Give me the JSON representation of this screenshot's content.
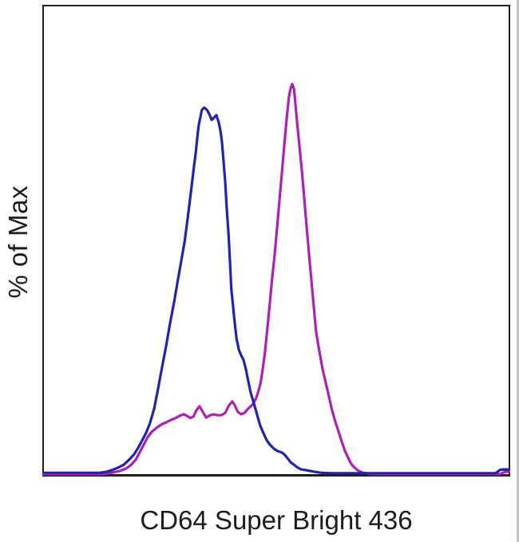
{
  "figure": {
    "background": "#ffffff",
    "border_color": "#1f1f1f",
    "text_color": "#1c1c1c"
  },
  "chart_data": {
    "type": "line",
    "subtype": "flow-cytometry-histogram-overlay",
    "title": "",
    "xlabel": "CD64 Super Bright 436",
    "ylabel": "% of Max",
    "x_axis_ticks": [],
    "y_axis_ticks": [],
    "xlim": [
      0,
      100
    ],
    "ylim": [
      0,
      100
    ],
    "x_units": "percent of axis width (no tick labels shown)",
    "y_units": "percent of plot height (no tick labels shown)",
    "grid": false,
    "legend": false,
    "series": [
      {
        "name": "magenta-curve",
        "color": "#aa22b2",
        "stroke_width": 3.2,
        "peak": {
          "x": 53.4,
          "y": 83.2
        },
        "points": [
          [
            0,
            0.5
          ],
          [
            8,
            0.5
          ],
          [
            13.1,
            0.5
          ],
          [
            14.8,
            0.8
          ],
          [
            16.6,
            1.2
          ],
          [
            17.9,
            1.7
          ],
          [
            18.9,
            2.4
          ],
          [
            20,
            3.6
          ],
          [
            20.8,
            5.1
          ],
          [
            21.7,
            6.8
          ],
          [
            22.5,
            8.3
          ],
          [
            23.4,
            9.5
          ],
          [
            24.4,
            10.3
          ],
          [
            25.4,
            11
          ],
          [
            26.5,
            11.5
          ],
          [
            27.5,
            12
          ],
          [
            28.5,
            12.4
          ],
          [
            29.4,
            12.9
          ],
          [
            30.2,
            13.2
          ],
          [
            30.9,
            12.9
          ],
          [
            31.6,
            12.4
          ],
          [
            32.3,
            12.7
          ],
          [
            32.9,
            14
          ],
          [
            33.6,
            14.9
          ],
          [
            34.3,
            13.7
          ],
          [
            35,
            12.5
          ],
          [
            35.7,
            12.9
          ],
          [
            36.5,
            13.2
          ],
          [
            37.4,
            13
          ],
          [
            38.2,
            13
          ],
          [
            39.1,
            13.5
          ],
          [
            39.9,
            15.1
          ],
          [
            40.6,
            15.9
          ],
          [
            41.1,
            15.2
          ],
          [
            41.8,
            13.7
          ],
          [
            42.5,
            13.2
          ],
          [
            43.2,
            13.5
          ],
          [
            44,
            14.4
          ],
          [
            44.9,
            15.2
          ],
          [
            45.6,
            16.4
          ],
          [
            46.1,
            17.8
          ],
          [
            46.6,
            19.6
          ],
          [
            47.1,
            22.7
          ],
          [
            47.6,
            26.4
          ],
          [
            48.1,
            31.5
          ],
          [
            48.6,
            36.5
          ],
          [
            49.1,
            41.8
          ],
          [
            49.7,
            47.4
          ],
          [
            50.2,
            53.1
          ],
          [
            50.7,
            58.7
          ],
          [
            51.2,
            64.3
          ],
          [
            51.7,
            70.1
          ],
          [
            52.2,
            75.6
          ],
          [
            52.7,
            80.4
          ],
          [
            53.1,
            82.4
          ],
          [
            53.4,
            83.2
          ],
          [
            53.8,
            82.1
          ],
          [
            54.1,
            79
          ],
          [
            54.4,
            75.6
          ],
          [
            54.9,
            70.6
          ],
          [
            55.5,
            64.6
          ],
          [
            56,
            58.7
          ],
          [
            56.5,
            52.8
          ],
          [
            57,
            47.2
          ],
          [
            57.5,
            41.8
          ],
          [
            58,
            36.2
          ],
          [
            58.5,
            30.8
          ],
          [
            59.2,
            26.6
          ],
          [
            59.9,
            22.8
          ],
          [
            60.6,
            19.8
          ],
          [
            61.3,
            16.8
          ],
          [
            61.9,
            14.2
          ],
          [
            62.6,
            11.7
          ],
          [
            63.3,
            9.6
          ],
          [
            64,
            7.4
          ],
          [
            64.7,
            5.4
          ],
          [
            65.4,
            3.9
          ],
          [
            66,
            2.7
          ],
          [
            66.7,
            1.9
          ],
          [
            67.6,
            1.2
          ],
          [
            68.6,
            0.8
          ],
          [
            70.3,
            0.5
          ],
          [
            74.6,
            0.5
          ],
          [
            81.4,
            0.5
          ],
          [
            88.2,
            0.5
          ],
          [
            94.2,
            0.5
          ],
          [
            97.6,
            0.5
          ],
          [
            98.3,
            0.7
          ],
          [
            98.8,
            1
          ],
          [
            99.5,
            1
          ],
          [
            99.8,
            1
          ]
        ]
      },
      {
        "name": "blue-curve",
        "color": "#2222aa",
        "stroke_width": 3.2,
        "peak": {
          "x": 34.6,
          "y": 78.2
        },
        "points": [
          [
            0,
            0.8
          ],
          [
            8,
            0.8
          ],
          [
            12.3,
            0.8
          ],
          [
            13.7,
            1
          ],
          [
            15,
            1.4
          ],
          [
            16.2,
            1.9
          ],
          [
            17.4,
            2.5
          ],
          [
            18.6,
            3.6
          ],
          [
            19.6,
            4.7
          ],
          [
            20.5,
            6.1
          ],
          [
            21.3,
            7.6
          ],
          [
            22.2,
            9.3
          ],
          [
            23,
            11.3
          ],
          [
            23.9,
            14.4
          ],
          [
            24.7,
            18.4
          ],
          [
            25.6,
            23.2
          ],
          [
            26.5,
            27.9
          ],
          [
            27.3,
            32.5
          ],
          [
            28.2,
            37.2
          ],
          [
            29,
            41.8
          ],
          [
            29.7,
            45.7
          ],
          [
            30.4,
            49.7
          ],
          [
            30.9,
            53.5
          ],
          [
            31.4,
            57.4
          ],
          [
            31.9,
            61.4
          ],
          [
            32.4,
            65.7
          ],
          [
            32.8,
            68.7
          ],
          [
            33.1,
            71.7
          ],
          [
            33.4,
            74.3
          ],
          [
            33.8,
            76.3
          ],
          [
            34.1,
            77.7
          ],
          [
            34.6,
            78.2
          ],
          [
            35.2,
            77.7
          ],
          [
            35.7,
            76.8
          ],
          [
            36.2,
            75.6
          ],
          [
            36.7,
            76.1
          ],
          [
            37.2,
            76.6
          ],
          [
            37.7,
            75.1
          ],
          [
            38.1,
            73.1
          ],
          [
            38.4,
            70.9
          ],
          [
            38.7,
            67.2
          ],
          [
            39.1,
            62.4
          ],
          [
            39.4,
            57
          ],
          [
            39.8,
            51.4
          ],
          [
            40.1,
            45.7
          ],
          [
            40.4,
            39.8
          ],
          [
            41,
            33.7
          ],
          [
            41.5,
            29.3
          ],
          [
            42,
            26.9
          ],
          [
            42.5,
            25.7
          ],
          [
            43,
            24.7
          ],
          [
            43.5,
            22.8
          ],
          [
            44,
            20.3
          ],
          [
            44.5,
            17.9
          ],
          [
            45.1,
            15.9
          ],
          [
            45.6,
            14.2
          ],
          [
            46.1,
            12.4
          ],
          [
            46.6,
            10.7
          ],
          [
            47.3,
            9.1
          ],
          [
            47.9,
            7.8
          ],
          [
            48.6,
            6.8
          ],
          [
            49.5,
            5.9
          ],
          [
            50.3,
            5.4
          ],
          [
            51.2,
            5.1
          ],
          [
            51.7,
            4.7
          ],
          [
            52.4,
            3.9
          ],
          [
            53.1,
            3
          ],
          [
            53.8,
            2.5
          ],
          [
            54.4,
            2
          ],
          [
            55.3,
            1.5
          ],
          [
            56.1,
            1.4
          ],
          [
            57.2,
            1.2
          ],
          [
            58.2,
            1
          ],
          [
            59.6,
            0.8
          ],
          [
            61.8,
            0.7
          ],
          [
            66,
            0.7
          ],
          [
            72.9,
            0.7
          ],
          [
            81.4,
            0.7
          ],
          [
            89.9,
            0.7
          ],
          [
            95.1,
            0.7
          ],
          [
            96.8,
            0.7
          ],
          [
            97.3,
            1
          ],
          [
            97.8,
            1.4
          ],
          [
            98.5,
            1.5
          ],
          [
            99.8,
            1.5
          ]
        ]
      }
    ]
  }
}
